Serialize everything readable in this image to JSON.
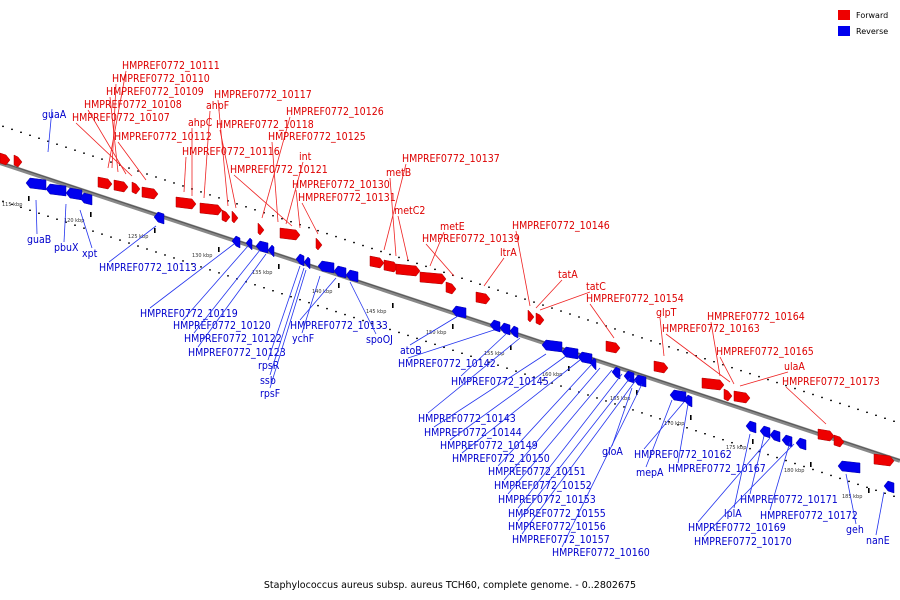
{
  "caption": "Staphylococcus aureus subsp. aureus TCH60, complete genome. - 0..2802675",
  "legend": [
    {
      "label": "Forward",
      "color": "#ee0000"
    },
    {
      "label": "Reverse",
      "color": "#0000ee"
    }
  ],
  "colors": {
    "forward": "#ee0000",
    "reverse": "#0000ee",
    "line_fwd": "#ee2222",
    "line_rev": "#2233ee"
  },
  "ticks": [
    "115 kbp",
    "120 kbp",
    "125 kbp",
    "130 kbp",
    "135 kbp",
    "140 kbp",
    "145 kbp",
    "150 kbp",
    "155 kbp",
    "160 kbp",
    "165 kbp",
    "170 kbp",
    "175 kbp",
    "180 kbp",
    "185 kbp"
  ],
  "forward_labels": [
    "HMPREF0772_10111",
    "HMPREF0772_10110",
    "HMPREF0772_10109",
    "HMPREF0772_10108",
    "HMPREF0772_10107",
    "HMPREF0772_10112",
    "HMPREF0772_10116",
    "ahpC",
    "ahpF",
    "HMPREF0772_10117",
    "HMPREF0772_10118",
    "HMPREF0772_10126",
    "HMPREF0772_10125",
    "int",
    "HMPREF0772_10121",
    "HMPREF0772_10130",
    "HMPREF0772_10131",
    "HMPREF0772_10137",
    "metB",
    "metC2",
    "metE",
    "HMPREF0772_10139",
    "ltrA",
    "HMPREF0772_10146",
    "tatA",
    "tatC",
    "HMPREF0772_10154",
    "glpT",
    "HMPREF0772_10164",
    "HMPREF0772_10163",
    "HMPREF0772_10165",
    "ulaA",
    "HMPREF0772_10173"
  ],
  "reverse_labels": [
    "guaA",
    "guaB",
    "pbuX",
    "xpt",
    "HMPREF0772_10113",
    "HMPREF0772_10119",
    "HMPREF0772_10120",
    "HMPREF0772_10122",
    "HMPREF0772_10123",
    "rpsR",
    "ssb",
    "rpsF",
    "ychF",
    "HMPREF0772_10133",
    "spoOJ",
    "atoB",
    "HMPREF0772_10142",
    "HMPREF0772_10145",
    "HMPREF0772_10143",
    "HMPREF0772_10144",
    "HMPREF0772_10149",
    "HMPREF0772_10150",
    "HMPREF0772_10151",
    "HMPREF0772_10152",
    "HMPREF0772_10153",
    "HMPREF0772_10155",
    "HMPREF0772_10156",
    "HMPREF0772_10157",
    "HMPREF0772_10160",
    "gloA",
    "mepA",
    "HMPREF0772_10162",
    "HMPREF0772_10167",
    "lplA",
    "HMPREF0772_10171",
    "HMPREF0772_10169",
    "HMPREF0772_10172",
    "HMPREF0772_10170",
    "geh",
    "nanE"
  ]
}
